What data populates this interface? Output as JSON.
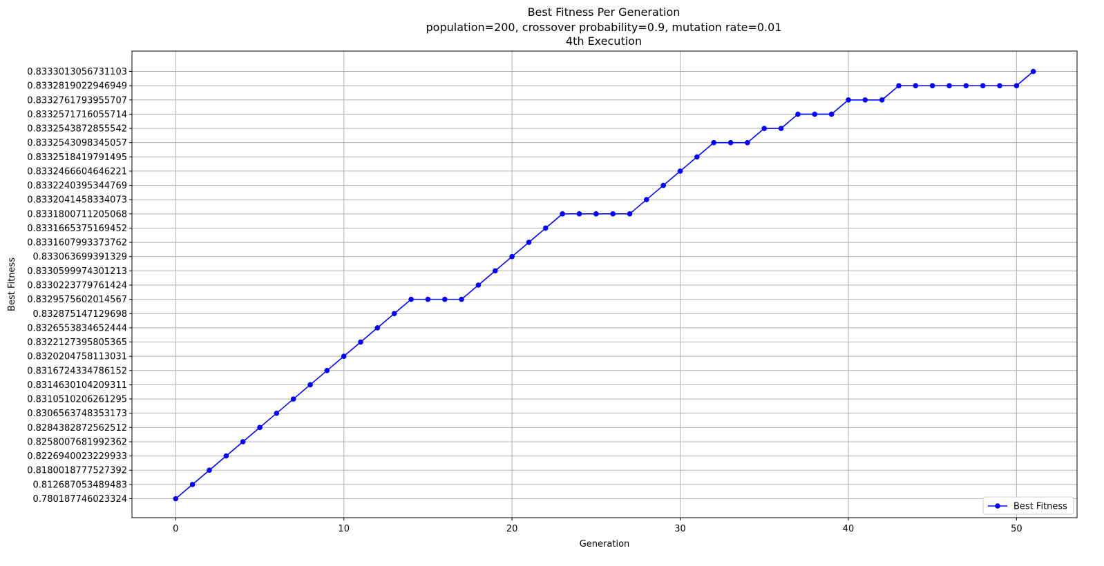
{
  "chart_data": {
    "type": "line",
    "title": "Best Fitness Per Generation",
    "subtitle": "population=200, crossover probability=0.9, mutation rate=0.01",
    "execution": "4th Execution",
    "xlabel": "Generation",
    "ylabel": "Best Fitness",
    "xlim": [
      -2.6,
      53.6
    ],
    "x_ticks": [
      0,
      10,
      20,
      30,
      40,
      50
    ],
    "y_axis_kind": "categorical",
    "y_categories": [
      "0.780187746023324",
      "0.812687053489483",
      "0.8180018777527392",
      "0.8226940023229933",
      "0.8258007681992362",
      "0.8284382872562512",
      "0.83065637483531​73",
      "0.8310510206261295",
      "0.8314630104209311",
      "0.8316724334786152",
      "0.8320204758113031",
      "0.8322127395805365",
      "0.83265538346524​44",
      "0.832875147129698",
      "0.8329575602014567",
      "0.8330223779761424",
      "0.8330599974301213",
      "0.833063699391329",
      "0.8331607993373762",
      "0.8331665375169452",
      "0.8331800711205068",
      "0.8332041458334073",
      "0.8332240395344769",
      "0.8332466604646221",
      "0.8332518419791495",
      "0.8332543098345057",
      "0.8332543872855542",
      "0.8332571716055714",
      "0.8332761793955707",
      "0.8332819022946949",
      "0.8333013056731103"
    ],
    "series": [
      {
        "name": "Best Fitness",
        "color": "#0000ff",
        "marker": "circle",
        "x": [
          0,
          1,
          2,
          3,
          4,
          5,
          6,
          7,
          8,
          9,
          10,
          11,
          12,
          13,
          14,
          15,
          16,
          17,
          18,
          19,
          20,
          21,
          22,
          23,
          24,
          25,
          26,
          27,
          28,
          29,
          30,
          31,
          32,
          33,
          34,
          35,
          36,
          37,
          38,
          39,
          40,
          41,
          42,
          43,
          44,
          45,
          46,
          47,
          48,
          49,
          50,
          51
        ],
        "y_index": [
          0,
          1,
          2,
          3,
          4,
          5,
          6,
          7,
          8,
          9,
          10,
          11,
          12,
          13,
          14,
          14,
          14,
          14,
          15,
          16,
          17,
          18,
          19,
          20,
          20,
          20,
          20,
          20,
          21,
          22,
          23,
          24,
          25,
          25,
          25,
          26,
          26,
          27,
          27,
          27,
          28,
          28,
          28,
          29,
          29,
          29,
          29,
          29,
          29,
          29,
          29,
          30
        ]
      }
    ],
    "grid": true,
    "legend": "lower right"
  }
}
